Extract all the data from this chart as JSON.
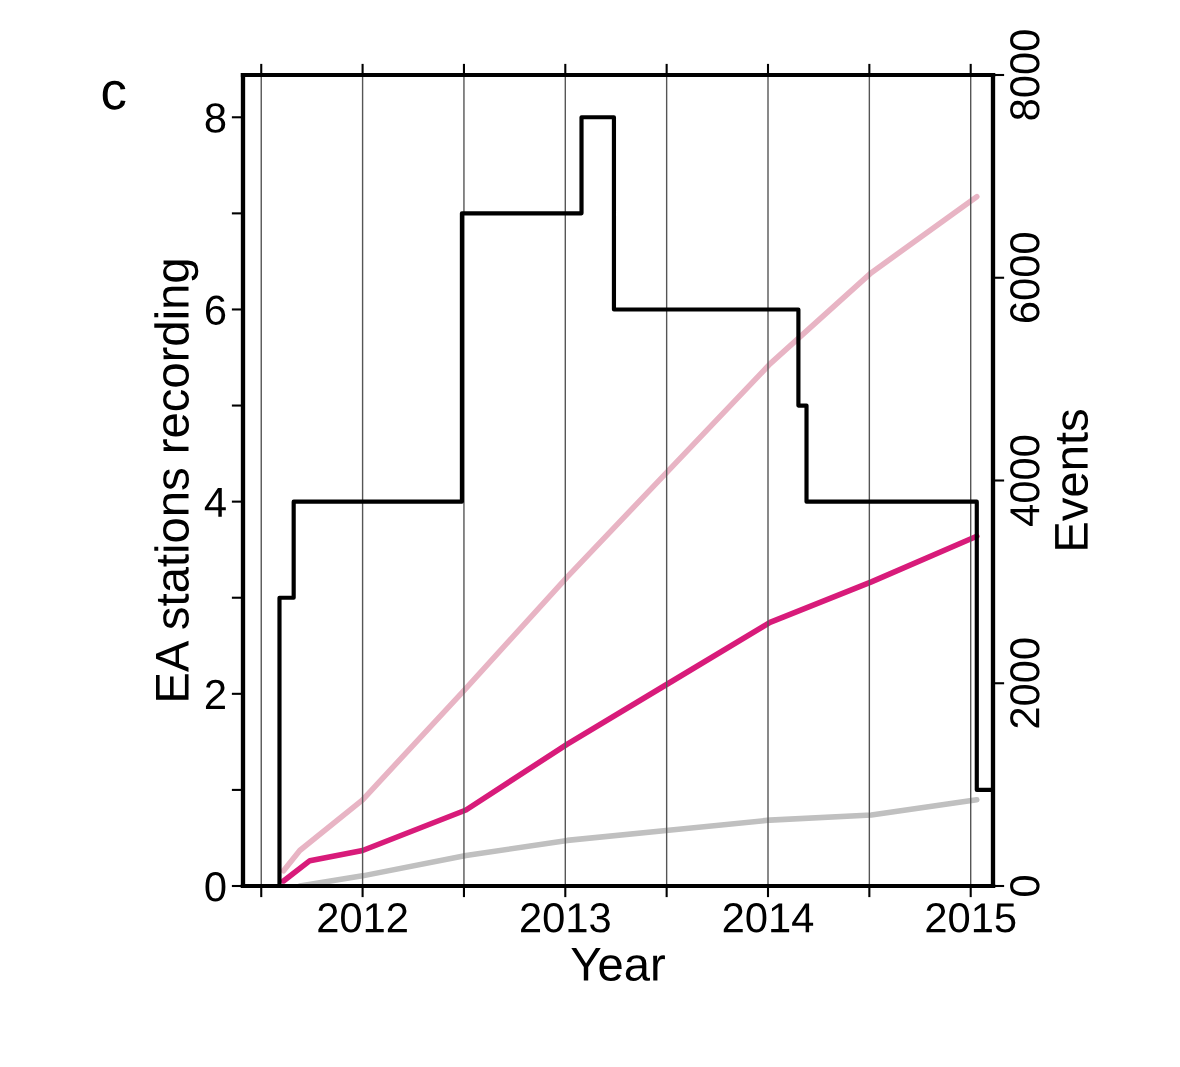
{
  "chart_data": {
    "type": "line",
    "xlabel": "Year",
    "ylabel": "EA stations recording",
    "y2label": "Events",
    "annotations": [
      "c"
    ],
    "xlim": [
      2011.41,
      2015.11
    ],
    "xticks": [
      {
        "value": 2011.5,
        "label": null
      },
      2012,
      {
        "value": 2012.5,
        "label": null
      },
      2013,
      {
        "value": 2013.5,
        "label": null
      },
      2014,
      {
        "value": 2014.5,
        "label": null
      },
      2015
    ],
    "ylim": [
      0,
      8.44
    ],
    "yticks": [
      0,
      {
        "value": 1,
        "label": null
      },
      2,
      {
        "value": 3,
        "label": null
      },
      4,
      {
        "value": 5,
        "label": null
      },
      6,
      {
        "value": 7,
        "label": null
      },
      8
    ],
    "y2lim": [
      0,
      8000
    ],
    "y2ticks": [
      0,
      2000,
      4000,
      6000,
      8000
    ],
    "grid": "x",
    "legend": false,
    "line_style": "solid",
    "marker": "none",
    "series": [
      {
        "type": "step",
        "color": "#000000",
        "x": [
          2011.41,
          2011.59,
          2011.66,
          2012.49,
          2013.08,
          2013.24,
          2014.15,
          2014.19,
          2015.03,
          2015.11
        ],
        "values": [
          0,
          3,
          4,
          7,
          8,
          6,
          5,
          4,
          1,
          1
        ]
      },
      {
        "axis": "y2",
        "color": "#e8b4c4",
        "x": [
          2011.61,
          2011.69,
          2012.0,
          2012.51,
          2013.01,
          2013.51,
          2014.01,
          2014.51,
          2015.03
        ],
        "values": [
          150,
          350,
          850,
          1950,
          3050,
          4100,
          5150,
          6050,
          6800
        ]
      },
      {
        "axis": "y2",
        "color": "#d81b7a",
        "x": [
          2011.61,
          2011.74,
          2012.0,
          2012.51,
          2013.01,
          2013.51,
          2014.01,
          2014.51,
          2015.03
        ],
        "values": [
          50,
          250,
          350,
          750,
          1400,
          2000,
          2600,
          3000,
          3450
        ]
      },
      {
        "axis": "y2",
        "color": "#c0c0c0",
        "x": [
          2011.69,
          2012.0,
          2012.51,
          2013.01,
          2013.51,
          2014.01,
          2014.51,
          2015.03
        ],
        "values": [
          0,
          100,
          300,
          450,
          550,
          650,
          700,
          850
        ]
      }
    ]
  }
}
